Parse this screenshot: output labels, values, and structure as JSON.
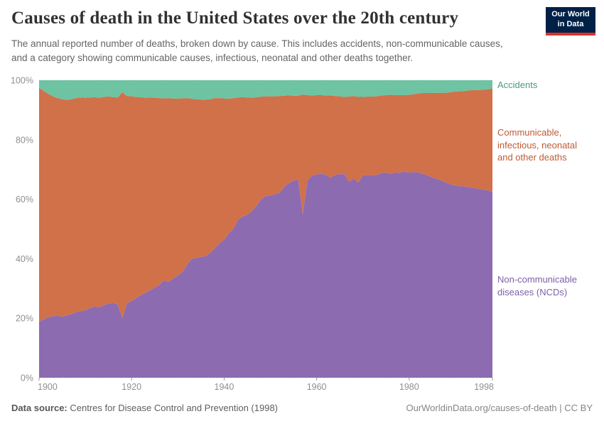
{
  "header": {
    "title": "Causes of death in the United States over the 20th century",
    "subtitle": "The annual reported number of deaths, broken down by cause. This includes accidents, non-communicable causes, and a category showing communicable causes, infectious, neonatal and other deaths together.",
    "logo": {
      "line1": "Our World",
      "line2": "in Data",
      "bg_color": "#002147",
      "bar_color": "#d8352c",
      "text_color": "#ffffff"
    }
  },
  "chart_data": {
    "type": "area",
    "stacking": "percent",
    "title": "Causes of death in the United States over the 20th century",
    "xlabel": "",
    "ylabel": "",
    "xlim": [
      1900,
      1998
    ],
    "ylim": [
      0,
      100
    ],
    "grid": "horizontal-dashed",
    "grid_color": "#d8d8d8",
    "axis_text_color": "#8f8f8f",
    "legend_position": "right-of-plot",
    "xticks": [
      1900,
      1920,
      1940,
      1960,
      1980,
      1998
    ],
    "yticks": [
      0,
      20,
      40,
      60,
      80,
      100
    ],
    "ytick_labels": [
      "0%",
      "20%",
      "40%",
      "60%",
      "80%",
      "100%"
    ],
    "x": [
      1900,
      1901,
      1902,
      1903,
      1904,
      1905,
      1906,
      1907,
      1908,
      1909,
      1910,
      1911,
      1912,
      1913,
      1914,
      1915,
      1916,
      1917,
      1918,
      1919,
      1920,
      1921,
      1922,
      1923,
      1924,
      1925,
      1926,
      1927,
      1928,
      1929,
      1930,
      1931,
      1932,
      1933,
      1934,
      1935,
      1936,
      1937,
      1938,
      1939,
      1940,
      1941,
      1942,
      1943,
      1944,
      1945,
      1946,
      1947,
      1948,
      1949,
      1950,
      1951,
      1952,
      1953,
      1954,
      1955,
      1956,
      1957,
      1958,
      1959,
      1960,
      1961,
      1962,
      1963,
      1964,
      1965,
      1966,
      1967,
      1968,
      1969,
      1970,
      1971,
      1972,
      1973,
      1974,
      1975,
      1976,
      1977,
      1978,
      1979,
      1980,
      1981,
      1982,
      1983,
      1984,
      1985,
      1986,
      1987,
      1988,
      1989,
      1990,
      1991,
      1992,
      1993,
      1994,
      1995,
      1996,
      1997,
      1998
    ],
    "series": [
      {
        "id": "ncd",
        "name": "Non-communicable diseases (NCDs)",
        "color": "#8c6bb1",
        "label_color": "#7d5fa8",
        "values": [
          18.8,
          19.6,
          20.4,
          20.6,
          21.0,
          20.5,
          21.0,
          21.4,
          22.0,
          22.4,
          22.7,
          23.4,
          24.0,
          23.7,
          24.4,
          24.9,
          25.2,
          24.6,
          20.0,
          25.0,
          25.8,
          26.8,
          27.8,
          28.6,
          29.4,
          30.3,
          31.2,
          32.8,
          32.2,
          33.4,
          34.4,
          35.5,
          38.0,
          39.9,
          40.3,
          40.6,
          40.9,
          42.0,
          43.6,
          45.2,
          46.4,
          48.5,
          50.0,
          53.0,
          54.2,
          54.8,
          56.0,
          57.8,
          60.0,
          61.0,
          61.3,
          61.7,
          62.2,
          64.2,
          65.5,
          66.2,
          66.8,
          55.0,
          66.3,
          68.0,
          68.3,
          68.6,
          68.2,
          67.2,
          68.2,
          68.4,
          68.5,
          65.9,
          67.0,
          65.6,
          68.0,
          68.2,
          68.0,
          68.2,
          68.8,
          68.9,
          68.6,
          69.0,
          68.9,
          69.3,
          68.9,
          69.2,
          69.0,
          68.5,
          68.0,
          67.3,
          66.8,
          66.3,
          65.6,
          65.0,
          64.6,
          64.4,
          64.3,
          64.0,
          63.8,
          63.5,
          63.2,
          63.0,
          62.4
        ]
      },
      {
        "id": "communicable",
        "name": "Communicable, infectious, neonatal and other deaths",
        "color": "#d0714a",
        "label_color": "#c05b32",
        "values": [
          78.6,
          76.8,
          75.0,
          74.0,
          73.0,
          73.1,
          72.4,
          72.2,
          72.0,
          71.8,
          71.4,
          70.8,
          70.3,
          70.4,
          70.0,
          69.7,
          69.1,
          69.6,
          76.0,
          69.7,
          68.8,
          67.6,
          66.5,
          65.5,
          64.8,
          63.8,
          62.8,
          61.1,
          61.8,
          60.4,
          59.5,
          58.4,
          56.0,
          53.9,
          53.3,
          52.9,
          52.6,
          51.6,
          50.4,
          48.8,
          47.5,
          45.3,
          44.0,
          41.2,
          40.1,
          39.4,
          38.1,
          36.5,
          34.5,
          33.6,
          33.3,
          32.9,
          32.5,
          30.6,
          29.4,
          28.6,
          28.0,
          40.2,
          28.7,
          26.9,
          26.7,
          26.4,
          26.7,
          27.7,
          26.5,
          26.2,
          25.9,
          28.6,
          27.7,
          28.8,
          26.4,
          26.3,
          26.5,
          26.4,
          26.1,
          26.1,
          26.5,
          26.0,
          26.1,
          25.7,
          26.2,
          26.1,
          26.6,
          27.2,
          27.7,
          28.4,
          28.9,
          29.5,
          30.2,
          31.0,
          31.6,
          31.9,
          32.1,
          32.6,
          32.9,
          33.2,
          33.6,
          34.0,
          34.8
        ]
      },
      {
        "id": "accidents",
        "name": "Accidents",
        "color": "#6ec3a3",
        "label_color": "#4a9a7d",
        "values": [
          2.6,
          3.6,
          4.6,
          5.4,
          6.0,
          6.4,
          6.6,
          6.4,
          6.0,
          5.8,
          5.9,
          5.8,
          5.7,
          5.9,
          5.6,
          5.4,
          5.7,
          5.8,
          4.0,
          5.3,
          5.4,
          5.6,
          5.7,
          5.9,
          5.8,
          5.9,
          6.0,
          6.1,
          6.0,
          6.2,
          6.1,
          6.1,
          6.0,
          6.2,
          6.4,
          6.5,
          6.5,
          6.4,
          6.0,
          6.0,
          6.1,
          6.2,
          6.0,
          5.8,
          5.7,
          5.8,
          5.9,
          5.7,
          5.5,
          5.4,
          5.4,
          5.4,
          5.3,
          5.2,
          5.1,
          5.2,
          5.2,
          4.8,
          5.0,
          5.1,
          5.0,
          5.0,
          5.1,
          5.1,
          5.3,
          5.4,
          5.6,
          5.5,
          5.3,
          5.6,
          5.6,
          5.5,
          5.5,
          5.4,
          5.1,
          5.0,
          4.9,
          5.0,
          5.0,
          5.0,
          4.9,
          4.7,
          4.4,
          4.3,
          4.3,
          4.3,
          4.3,
          4.2,
          4.2,
          4.0,
          3.8,
          3.7,
          3.6,
          3.4,
          3.3,
          3.3,
          3.2,
          3.0,
          2.8
        ]
      }
    ]
  },
  "footer": {
    "datasource_label": "Data source:",
    "datasource_value": " Centres for Disease Control and Prevention (1998)",
    "attribution": "OurWorldinData.org/causes-of-death | CC BY"
  }
}
